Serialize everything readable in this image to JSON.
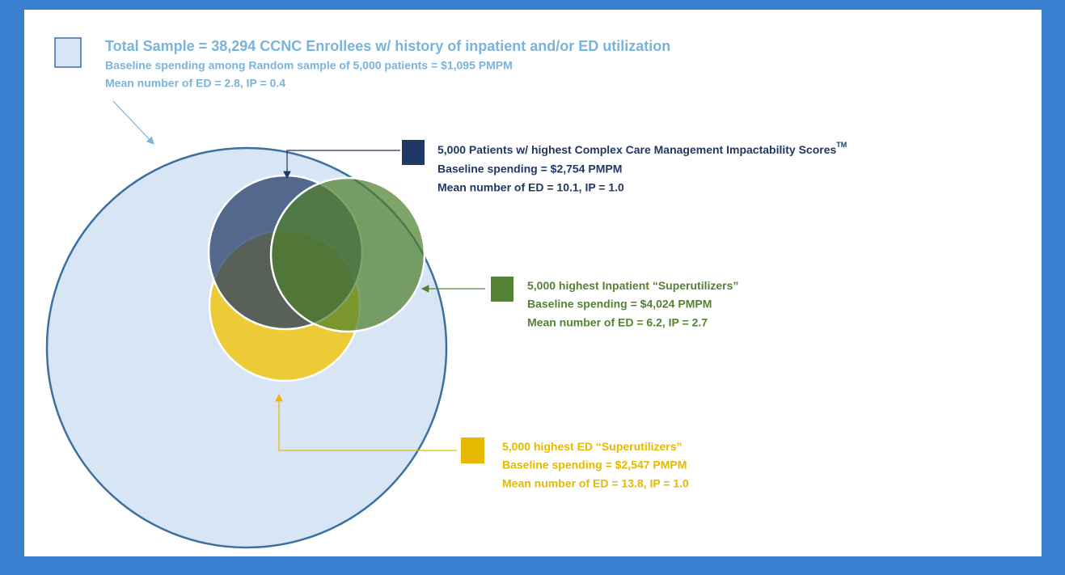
{
  "groups": [
    {
      "title": "Total Sample = 38,294 CCNC Enrollees w/ history of inpatient and/or ED utilization",
      "lines": [
        "Baseline spending among Random sample of 5,000 patients = $1,095 PMPM",
        "Mean number of ED = 2.8, IP = 0.4"
      ]
    },
    {
      "title": "5,000 Patients w/ highest Complex Care Management Impactability Scores",
      "superscript": "TM",
      "lines": [
        "Baseline spending = $2,754 PMPM",
        "Mean number of ED = 10.1, IP = 1.0"
      ]
    },
    {
      "title": "5,000 highest Inpatient “Superutilizers”",
      "lines": [
        "Baseline spending = $4,024 PMPM",
        "Mean number of ED = 6.2, IP = 2.7"
      ]
    },
    {
      "title": "5,000 highest ED “Superutilizers”",
      "lines": [
        "Baseline spending = $2,547 PMPM",
        "Mean number of ED = 13.8, IP = 1.0"
      ]
    }
  ]
}
